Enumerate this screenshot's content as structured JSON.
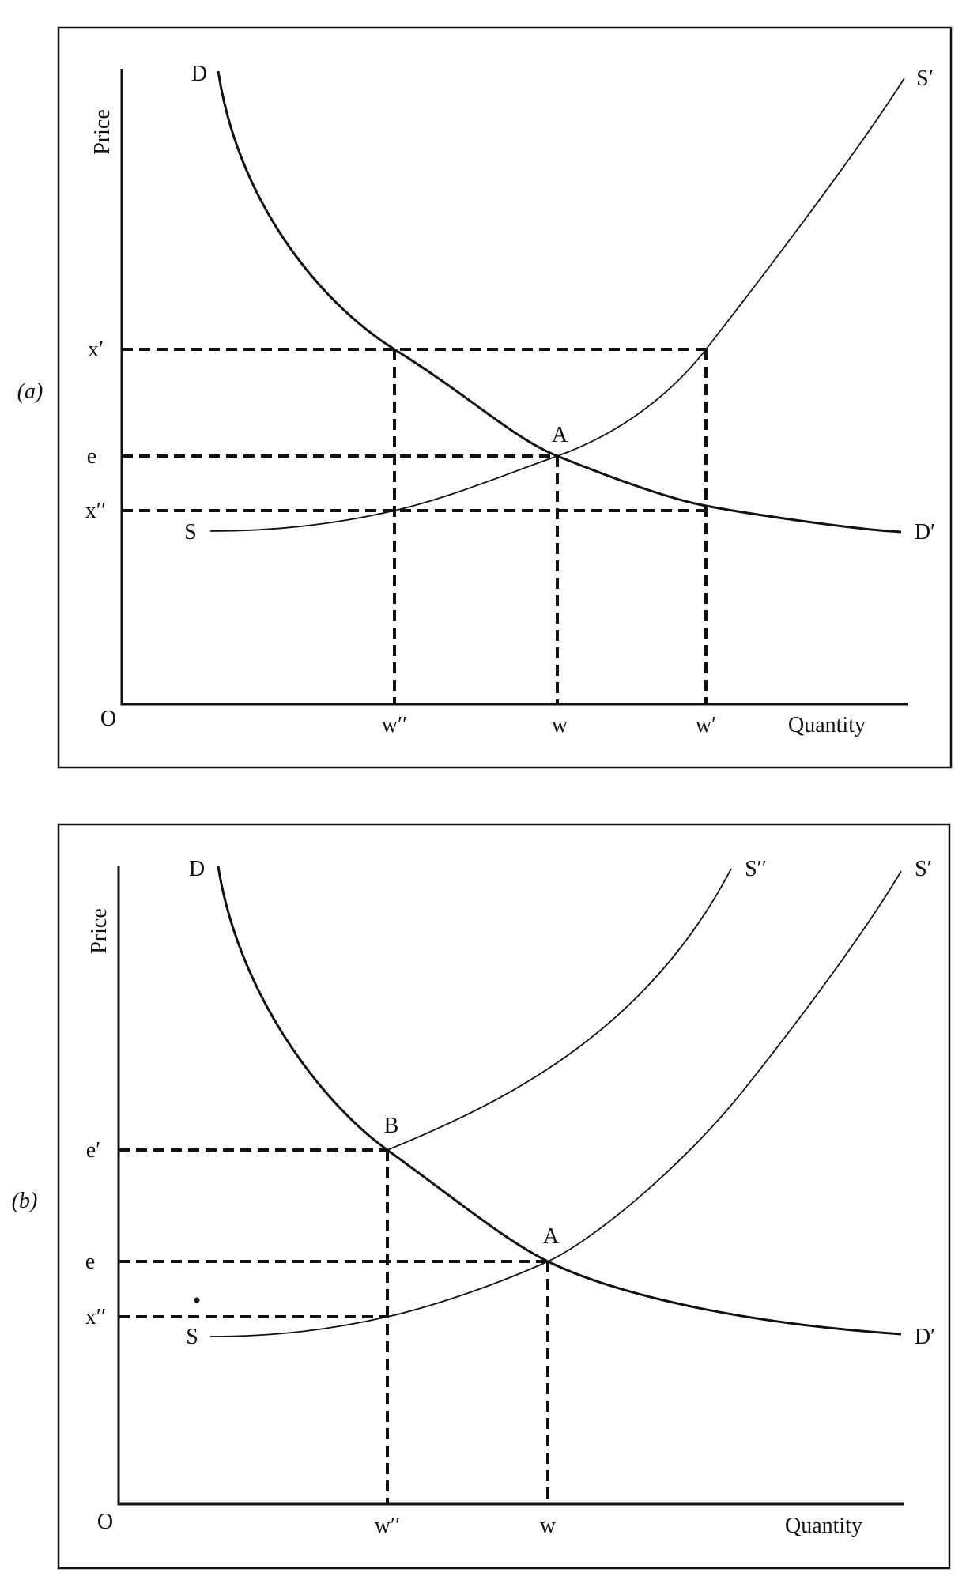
{
  "panel_a": {
    "tag": "(a)",
    "y_axis_label": "Price",
    "x_axis_label": "Quantity",
    "origin": "O",
    "price_levels": [
      "x′",
      "e",
      "x′′"
    ],
    "quantity_levels": [
      "w′′",
      "w",
      "w′"
    ],
    "curves": {
      "demand_start": "D",
      "demand_end": "D′",
      "supply_start": "S",
      "supply_end": "S′"
    },
    "points": [
      "A"
    ]
  },
  "panel_b": {
    "tag": "(b)",
    "y_axis_label": "Price",
    "x_axis_label": "Quantity",
    "origin": "O",
    "price_levels": [
      "e′",
      "e",
      "x′′"
    ],
    "quantity_levels": [
      "w′′",
      "w"
    ],
    "curves": {
      "demand_start": "D",
      "demand_end": "D′",
      "supply_start": "S",
      "supply_end": "S′",
      "shifted_supply_end": "S′′"
    },
    "points": [
      "B",
      "A"
    ]
  },
  "colors": {
    "ink": "#111111",
    "background": "#ffffff"
  }
}
